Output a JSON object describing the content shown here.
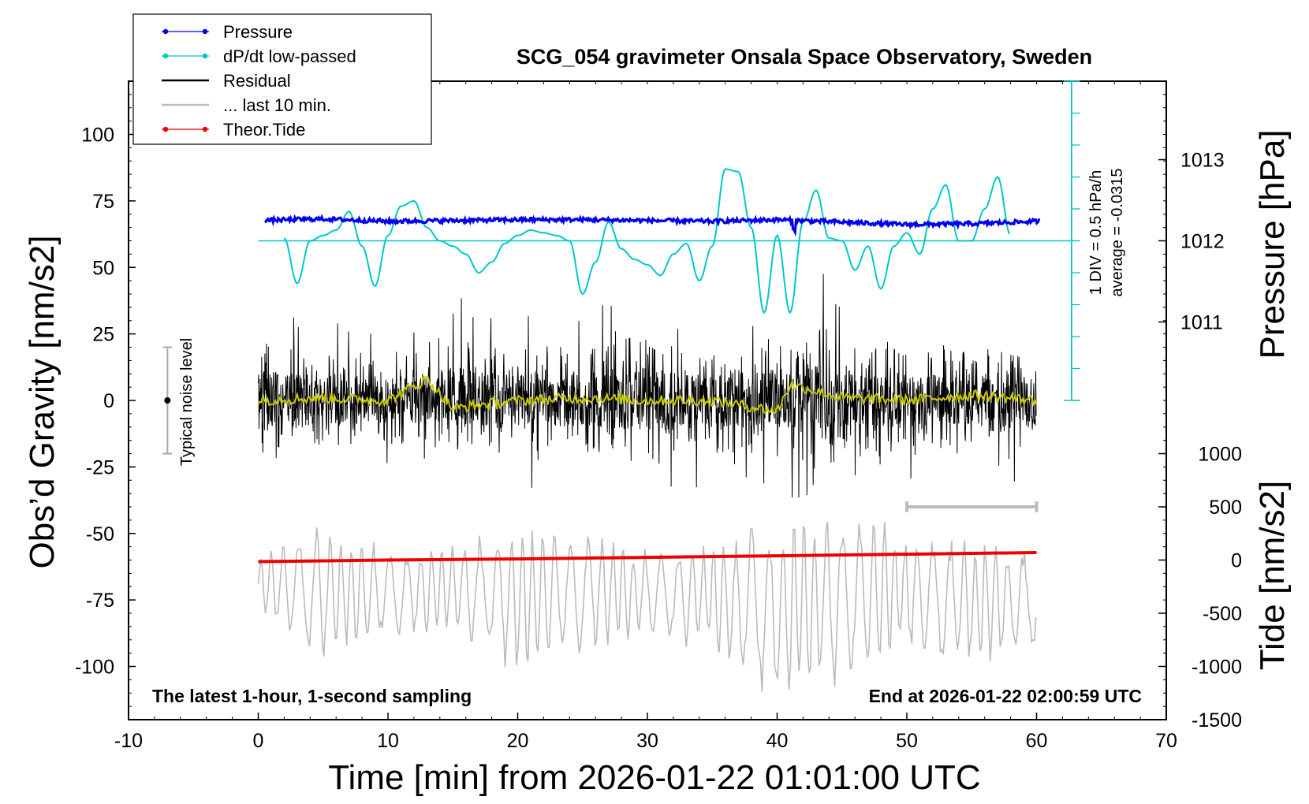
{
  "chart_data": {
    "type": "line",
    "title": "SCG_054 gravimeter Onsala Space Observatory, Sweden",
    "xlabel": "Time [min] from 2026-01-22 01:01:00 UTC",
    "xlim": [
      -10,
      70
    ],
    "x_ticks": [
      -10,
      0,
      10,
      20,
      30,
      40,
      50,
      60,
      70
    ],
    "ylabel_left": "Obs’d Gravity [nm/s2]",
    "ylim_left": [
      -120,
      120
    ],
    "y_ticks_left": [
      100,
      75,
      50,
      25,
      0,
      -25,
      -50,
      -75,
      -100
    ],
    "ylabel_pressure": "Pressure [hPa]",
    "pressure_ticks": [
      1013,
      1012,
      1011
    ],
    "ylabel_tide": "Tide [nm/s2]",
    "tide_ticks": [
      1000,
      500,
      0,
      -500,
      -1000,
      -1500
    ],
    "legend_position": "top-left",
    "legend": [
      {
        "label": "Pressure",
        "color": "#0000ee",
        "style": "line-dot"
      },
      {
        "label": "dP/dt low-passed",
        "color": "#00c8c8",
        "style": "line-dot"
      },
      {
        "label": "Residual",
        "color": "#000000",
        "style": "line"
      },
      {
        "label": "... last 10 min.",
        "color": "#bbbbbb",
        "style": "line"
      },
      {
        "label": "Theor.Tide",
        "color": "#ee0000",
        "style": "line-dot"
      }
    ],
    "annotations": {
      "noise_label": "Typical noise level",
      "scale_line1": "1 DIV = 0.5 hPa/h",
      "scale_line2": "average = -0.0315",
      "bottom_left": "The latest 1-hour, 1-second sampling",
      "bottom_right": "End at 2026-01-22 02:00:59 UTC"
    },
    "series": [
      {
        "name": "Pressure",
        "color": "#0000ee",
        "x": [
          0,
          5,
          10,
          15,
          20,
          25,
          30,
          35,
          40,
          45,
          50,
          55,
          60
        ],
        "y": [
          1012.25,
          1012.27,
          1012.24,
          1012.25,
          1012.26,
          1012.26,
          1012.25,
          1012.24,
          1012.26,
          1012.23,
          1012.2,
          1012.21,
          1012.24
        ]
      },
      {
        "name": "dP/dt low-passed",
        "color": "#00c8c8",
        "x": [
          2,
          3,
          4,
          5,
          6,
          7,
          8,
          9,
          10,
          11,
          12,
          13,
          14,
          15,
          16,
          17,
          18,
          19,
          20,
          21,
          22,
          23,
          24,
          25,
          26,
          27,
          28,
          29,
          30,
          31,
          32,
          33,
          34,
          35,
          36,
          37,
          38,
          39,
          40,
          41,
          42,
          43,
          44,
          45,
          46,
          47,
          48,
          49,
          50,
          51,
          52,
          53,
          54,
          55,
          56,
          57,
          58
        ],
        "y": [
          61,
          44,
          60,
          62,
          64,
          71,
          58,
          43,
          62,
          73,
          75,
          65,
          60,
          58,
          55,
          48,
          52,
          59,
          62,
          64,
          63,
          62,
          60,
          40,
          52,
          67,
          57,
          53,
          51,
          47,
          55,
          59,
          45,
          58,
          87,
          86,
          65,
          33,
          62,
          33,
          67,
          79,
          61,
          60,
          49,
          58,
          42,
          58,
          63,
          55,
          72,
          81,
          60,
          60,
          72,
          84,
          62
        ]
      },
      {
        "name": "Residual",
        "color": "#000000",
        "x": [
          0,
          5,
          10,
          15,
          20,
          25,
          30,
          35,
          40,
          42,
          43.5,
          45,
          50,
          55,
          57,
          60
        ],
        "y_min": [
          -40,
          -30,
          -28,
          -30,
          -35,
          -32,
          -40,
          -34,
          -35,
          -40,
          -48,
          -32,
          -35,
          -30,
          -42,
          -32
        ],
        "y_max": [
          38,
          32,
          30,
          42,
          33,
          35,
          42,
          30,
          40,
          35,
          50,
          33,
          33,
          32,
          35,
          28
        ]
      },
      {
        "name": "Residual smoothed",
        "color": "#c8c800",
        "x": [
          0,
          5,
          10,
          13,
          15,
          20,
          25,
          30,
          35,
          40,
          41,
          45,
          50,
          55,
          60
        ],
        "y": [
          0,
          1,
          0,
          8,
          -3,
          0,
          1,
          0,
          0,
          -4,
          6,
          1,
          0,
          2,
          0
        ]
      },
      {
        "name": "... last 10 min.",
        "color": "#bbbbbb",
        "x": [
          0,
          5,
          10,
          15,
          20,
          25,
          30,
          35,
          40,
          45,
          50,
          55,
          60
        ],
        "y_min": [
          -80,
          -100,
          -90,
          -88,
          -105,
          -95,
          -90,
          -95,
          -120,
          -110,
          -95,
          -103,
          -95
        ],
        "y_max": [
          -58,
          -45,
          -55,
          -52,
          -45,
          -48,
          -55,
          -53,
          -40,
          -40,
          -48,
          -50,
          -55
        ]
      },
      {
        "name": "Theor.Tide",
        "color": "#ee0000",
        "x": [
          0,
          10,
          20,
          30,
          40,
          50,
          60
        ],
        "y": [
          -15,
          0,
          10,
          25,
          40,
          55,
          70
        ]
      }
    ],
    "last10_range": [
      50,
      60
    ],
    "noise_bar_range": [
      -20,
      20
    ]
  }
}
